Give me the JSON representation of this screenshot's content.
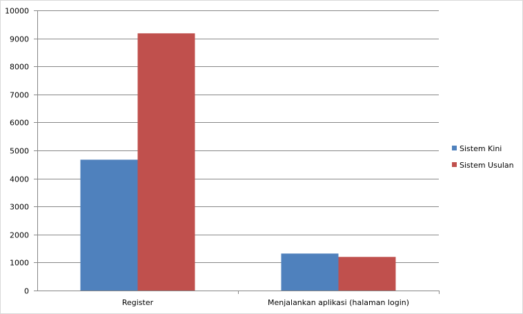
{
  "chart_data": {
    "type": "bar",
    "categories": [
      "Register",
      "Menjalankan aplikasi (halaman login)"
    ],
    "series": [
      {
        "name": "Sistem Kini",
        "values": [
          4670,
          1320
        ],
        "color": "#4f81bd"
      },
      {
        "name": "Sistem Usulan",
        "values": [
          9180,
          1200
        ],
        "color": "#c0504d"
      }
    ],
    "ylim": [
      0,
      10000
    ],
    "yticks": [
      "0",
      "1000",
      "2000",
      "3000",
      "4000",
      "5000",
      "6000",
      "7000",
      "8000",
      "9000",
      "10000"
    ],
    "grid": true,
    "legend": "right"
  }
}
